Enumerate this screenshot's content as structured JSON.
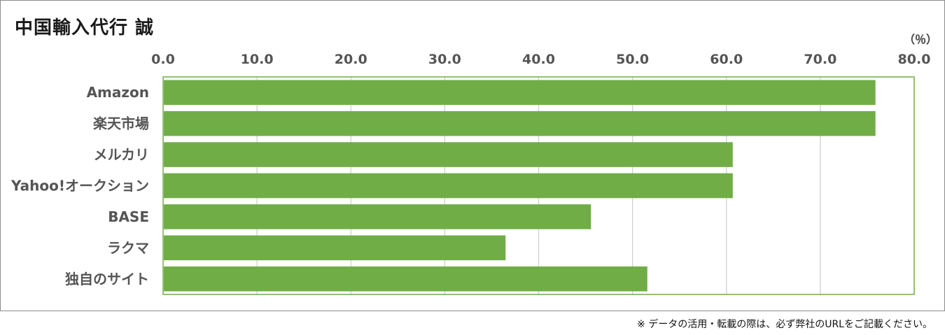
{
  "chart_data": {
    "type": "bar",
    "orientation": "horizontal",
    "title": "中国輸入代行 誠",
    "unit_label": "（％）",
    "categories": [
      "Amazon",
      "楽天市場",
      "メルカリ",
      "Yahoo!オークション",
      "BASE",
      "ラクマ",
      "独自のサイト"
    ],
    "values": [
      75.8,
      75.8,
      60.6,
      60.6,
      45.5,
      36.4,
      51.5
    ],
    "x_ticks": [
      "0.0",
      "10.0",
      "20.0",
      "30.0",
      "40.0",
      "50.0",
      "60.0",
      "70.0",
      "80.0"
    ],
    "xlim": [
      0,
      80
    ],
    "axis_position": "top",
    "grid": true,
    "legend": "none",
    "bar_color": "#70ad47",
    "plot_border_color": "#70ad47"
  },
  "footnote": "※ データの活用・転載の際は、必ず弊社のURLをご記載ください。"
}
